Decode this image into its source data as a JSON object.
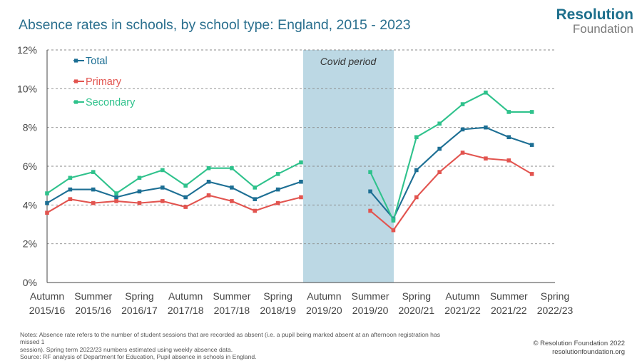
{
  "header": {
    "title": "Absence rates in schools, by school type: England, 2015 - 2023",
    "logo_line1": "Resolution",
    "logo_line2": "Foundation"
  },
  "chart_data": {
    "type": "line",
    "ylim": [
      0,
      12
    ],
    "yticks": [
      "0%",
      "2%",
      "4%",
      "6%",
      "8%",
      "10%",
      "12%"
    ],
    "grid": true,
    "legend": "top-left",
    "covid_label": "Covid period",
    "x_labels": [
      {
        "line1": "Autumn",
        "line2": "2015/16"
      },
      {
        "line1": "Summer",
        "line2": "2015/16"
      },
      {
        "line1": "Spring",
        "line2": "2016/17"
      },
      {
        "line1": "Autumn",
        "line2": "2017/18"
      },
      {
        "line1": "Summer",
        "line2": "2017/18"
      },
      {
        "line1": "Spring",
        "line2": "2018/19"
      },
      {
        "line1": "Autumn",
        "line2": "2019/20"
      },
      {
        "line1": "Summer",
        "line2": "2019/20"
      },
      {
        "line1": "Spring",
        "line2": "2020/21"
      },
      {
        "line1": "Autumn",
        "line2": "2021/22"
      },
      {
        "line1": "Summer",
        "line2": "2021/22"
      },
      {
        "line1": "Spring",
        "line2": "2022/23"
      }
    ],
    "series": [
      {
        "name": "Total",
        "color": "#1d6f94",
        "segments": [
          [
            4.1,
            4.8,
            4.8,
            4.4,
            4.7,
            4.9,
            4.4,
            5.2,
            4.9,
            4.3,
            4.8,
            5.2
          ],
          [
            4.7,
            3.3,
            5.8,
            6.9,
            7.9,
            8.0,
            7.5,
            7.1
          ]
        ]
      },
      {
        "name": "Primary",
        "color": "#e2544f",
        "segments": [
          [
            3.6,
            4.3,
            4.1,
            4.2,
            4.1,
            4.2,
            3.9,
            4.5,
            4.2,
            3.7,
            4.1,
            4.4
          ],
          [
            3.7,
            2.7,
            4.4,
            5.7,
            6.7,
            6.4,
            6.3,
            5.6
          ]
        ]
      },
      {
        "name": "Secondary",
        "color": "#2fc28c",
        "segments": [
          [
            4.6,
            5.4,
            5.7,
            4.6,
            5.4,
            5.8,
            5.0,
            5.9,
            5.9,
            4.9,
            5.6,
            6.2
          ],
          [
            5.7,
            3.2,
            7.5,
            8.2,
            9.2,
            9.8,
            8.8,
            8.8
          ]
        ]
      }
    ]
  },
  "footer": {
    "notes_line1": "Notes: Absence rate refers to the number of student sessions that are recorded as absent (i.e. a pupil being marked absent at an afternoon registration has missed 1",
    "notes_line2": "session). Spring term 2022/23 numbers estimated using weekly absence data.",
    "notes_line3": "Source: RF analysis of Department for Education, Pupil absence in schools in England.",
    "credit_line1": "© Resolution Foundation 2022",
    "credit_line2": "resolutionfoundation.org"
  }
}
